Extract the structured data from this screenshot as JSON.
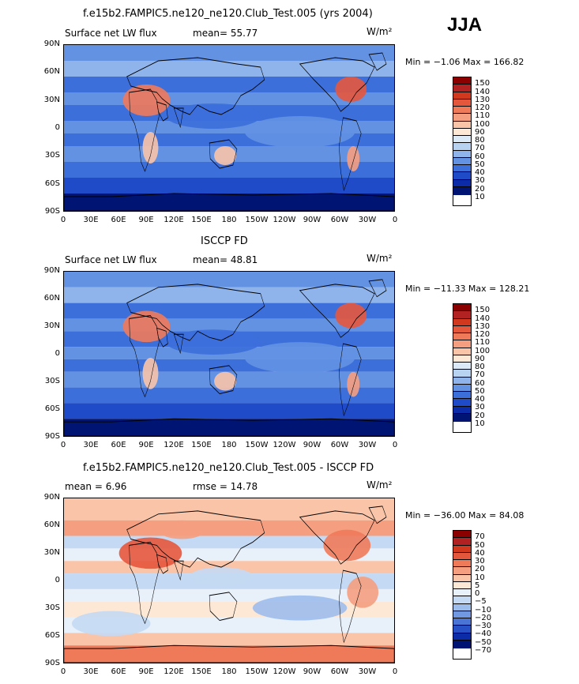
{
  "header": {
    "season": "JJA"
  },
  "panels": [
    {
      "title": "f.e15b2.FAMPIC5.ne120_ne120.Club_Test.005 (yrs 2004)",
      "left_label": "Surface net LW flux",
      "mid_label": "mean=  55.77",
      "units": "W/m²",
      "minmax": "Min =  −1.06 Max = 166.82",
      "levels": [
        "150",
        "140",
        "130",
        "120",
        "110",
        "100",
        "90",
        "80",
        "70",
        "60",
        "50",
        "40",
        "30",
        "20",
        "10"
      ],
      "colors": [
        "#8b0000",
        "#b22222",
        "#d2381e",
        "#e5573c",
        "#ef7a5a",
        "#f59f80",
        "#f9c4a8",
        "#fde8d6",
        "#dce9f7",
        "#b8d2f2",
        "#8fb4ec",
        "#6392e3",
        "#3c6fda",
        "#1f4bc8",
        "#0c2ba8",
        "#001573"
      ]
    },
    {
      "title": "ISCCP FD",
      "left_label": "Surface net LW flux",
      "mid_label": "mean=  48.81",
      "units": "W/m²",
      "minmax": "Min = −11.33 Max = 128.21",
      "levels": [
        "150",
        "140",
        "130",
        "120",
        "110",
        "100",
        "90",
        "80",
        "70",
        "60",
        "50",
        "40",
        "30",
        "20",
        "10"
      ],
      "colors": [
        "#8b0000",
        "#b22222",
        "#d2381e",
        "#e5573c",
        "#ef7a5a",
        "#f59f80",
        "#f9c4a8",
        "#fde8d6",
        "#dce9f7",
        "#b8d2f2",
        "#8fb4ec",
        "#6392e3",
        "#3c6fda",
        "#1f4bc8",
        "#0c2ba8",
        "#001573"
      ]
    },
    {
      "title": "f.e15b2.FAMPIC5.ne120_ne120.Club_Test.005 - ISCCP FD",
      "left_label": "mean =   6.96",
      "mid_label": "rmse =  14.78",
      "units": "W/m²",
      "minmax": "Min = −36.00 Max =  84.08",
      "levels": [
        "70",
        "50",
        "40",
        "30",
        "20",
        "10",
        "5",
        "0",
        "−5",
        "−10",
        "−20",
        "−30",
        "−40",
        "−50",
        "−70"
      ],
      "colors": [
        "#8b0000",
        "#b22222",
        "#d2381e",
        "#e5573c",
        "#ef7a5a",
        "#f59f80",
        "#f9c4a8",
        "#fde8d6",
        "#e8f0fa",
        "#c4d9f3",
        "#9dbdec",
        "#7298e2",
        "#4a74d6",
        "#274fc6",
        "#0c2ba8",
        "#001573"
      ]
    }
  ],
  "lat_ticks": [
    "90N",
    "60N",
    "30N",
    "0",
    "30S",
    "60S",
    "90S"
  ],
  "lon_ticks": [
    "0",
    "30E",
    "60E",
    "90E",
    "120E",
    "150E",
    "180",
    "150W",
    "120W",
    "90W",
    "60W",
    "30W",
    "0"
  ]
}
